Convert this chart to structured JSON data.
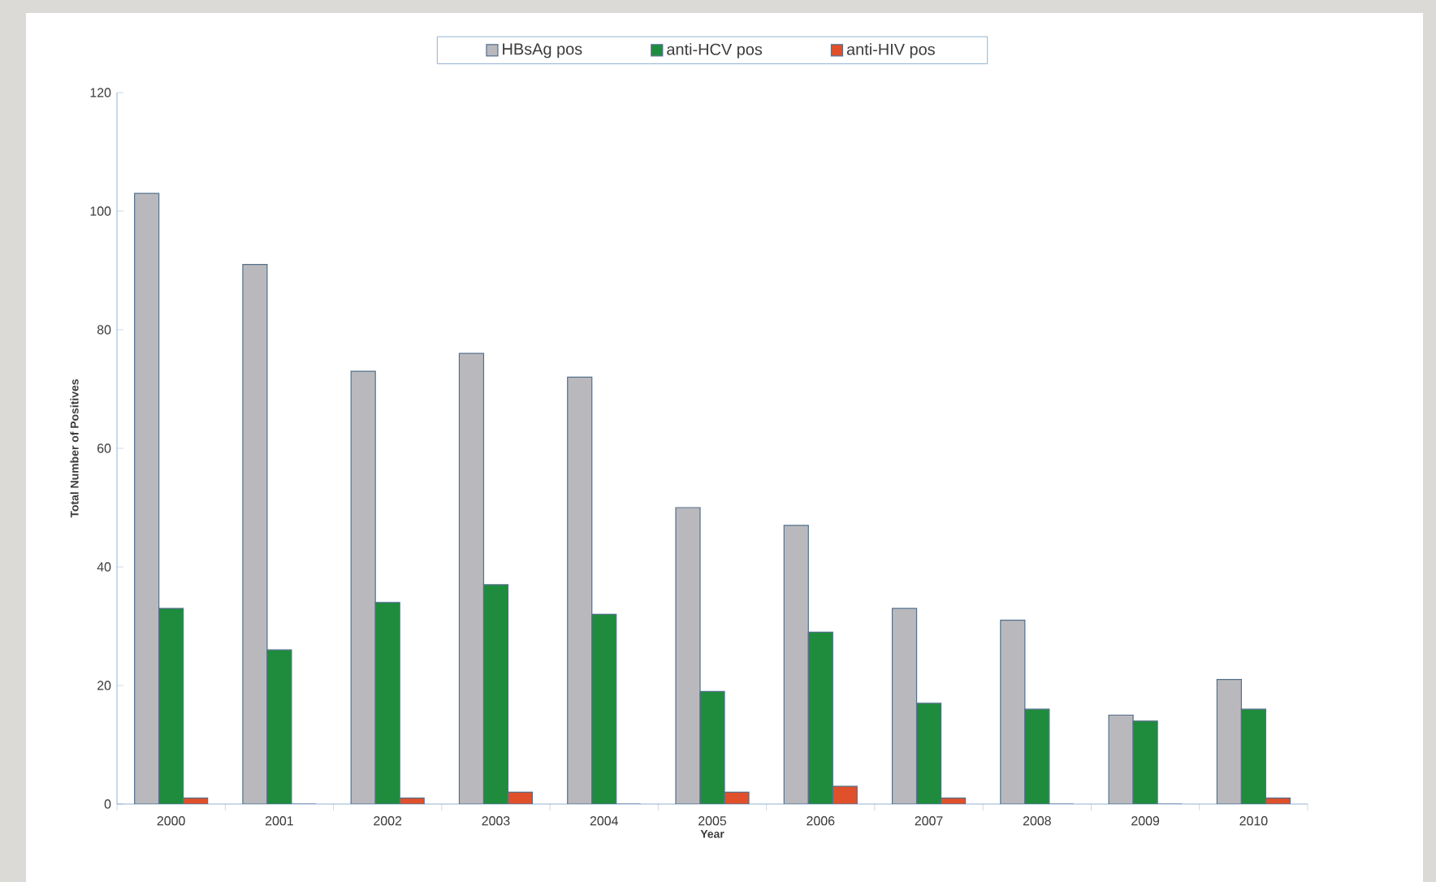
{
  "chart_data": {
    "type": "bar",
    "xlabel": "Year",
    "ylabel": "Total Number of Positives",
    "categories": [
      "2000",
      "2001",
      "2002",
      "2003",
      "2004",
      "2005",
      "2006",
      "2007",
      "2008",
      "2009",
      "2010"
    ],
    "series": [
      {
        "name": "HBsAg pos",
        "color": "#b9b9bd",
        "values": [
          103,
          91,
          73,
          76,
          72,
          50,
          47,
          33,
          31,
          15,
          21
        ]
      },
      {
        "name": "anti-HCV pos",
        "color": "#1e8c3c",
        "values": [
          33,
          26,
          34,
          37,
          32,
          19,
          29,
          17,
          16,
          14,
          16
        ]
      },
      {
        "name": "anti-HIV pos",
        "color": "#e0502a",
        "values": [
          1,
          0,
          1,
          2,
          0,
          2,
          3,
          1,
          0,
          0,
          1
        ]
      }
    ],
    "ylim": [
      0,
      120
    ],
    "yticks": [
      0,
      20,
      40,
      60,
      80,
      100,
      120
    ],
    "legend": "top"
  }
}
